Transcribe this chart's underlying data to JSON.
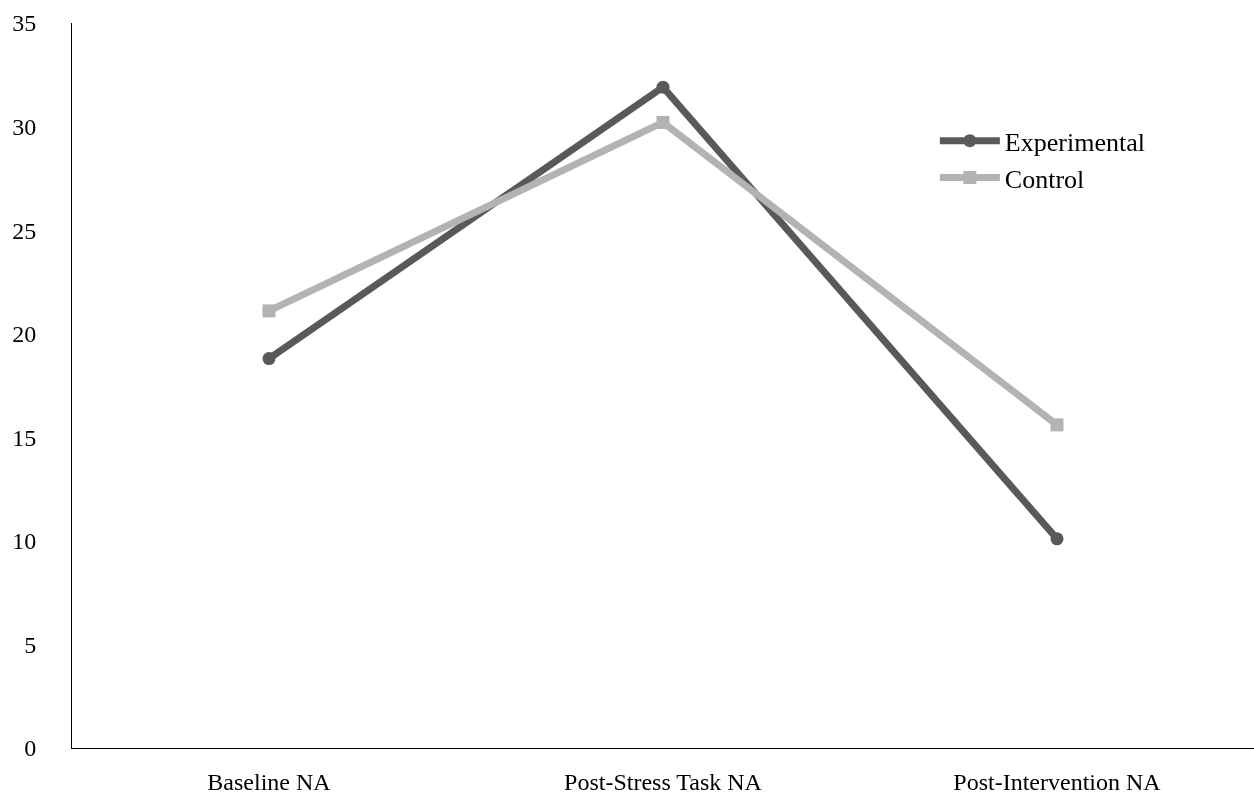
{
  "chart_data": {
    "type": "line",
    "categories": [
      "Baseline NA",
      "Post-Stress Task NA",
      "Post-Intervention NA"
    ],
    "series": [
      {
        "name": "Experimental",
        "color": "#595959",
        "marker": "circle",
        "values": [
          18.8,
          31.9,
          10.1
        ]
      },
      {
        "name": "Control",
        "color": "#b3b3b3",
        "marker": "square",
        "values": [
          21.1,
          30.2,
          15.6
        ]
      }
    ],
    "ylim": [
      0,
      35
    ],
    "yticks": [
      0,
      5,
      10,
      15,
      20,
      25,
      30,
      35
    ],
    "legend": "top right",
    "line_style": "solid"
  }
}
